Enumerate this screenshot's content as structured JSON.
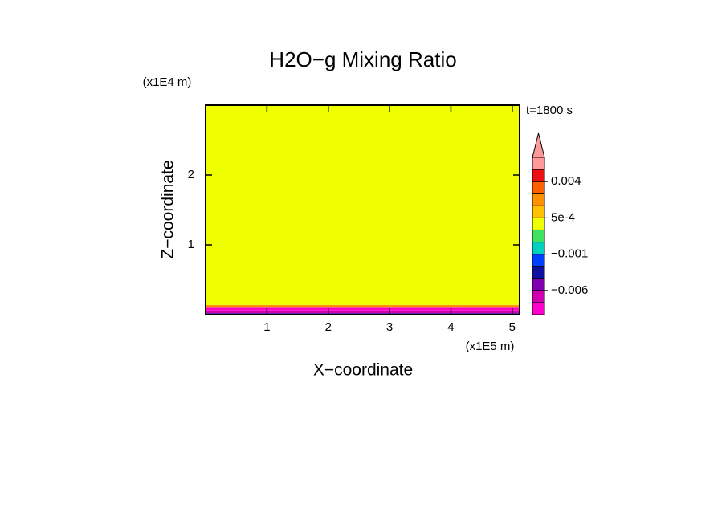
{
  "chart_data": {
    "type": "contour",
    "title": "H2O−g Mixing Ratio",
    "xlabel": "X−coordinate",
    "ylabel": "Z−coordinate",
    "xunit": "(x1E5 m)",
    "yunit": "(x1E4 m)",
    "time_label": "t=1800 s",
    "xlim": [
      0,
      5.12
    ],
    "ylim": [
      0,
      3
    ],
    "xticks": [
      1,
      2,
      3,
      4,
      5
    ],
    "yticks": [
      1,
      2
    ],
    "field": {
      "z_edges": [
        0,
        0.02,
        0.06,
        0.1,
        0.14,
        3
      ],
      "values": [
        -0.003,
        -0.007,
        -0.009,
        0.0015,
        0.0002
      ]
    },
    "colorbar": {
      "levels": [
        -0.01,
        -0.008,
        -0.006,
        -0.004,
        -0.002,
        -0.001,
        -0.0005,
        0,
        0.0005,
        0.001,
        0.002,
        0.004,
        0.006,
        0.008
      ],
      "colors": [
        "#ff00cc",
        "#d000b0",
        "#8000b0",
        "#1010a0",
        "#0040ff",
        "#00d0c0",
        "#40e060",
        "#f0ff00",
        "#ffc000",
        "#ff9000",
        "#ff6000",
        "#ee1010",
        "#ff9a9a"
      ],
      "extend_color": "#ff9a9a",
      "ticks": [
        {
          "value": 0.004,
          "label": "0.004"
        },
        {
          "value": 0.0005,
          "label": "5e-4"
        },
        {
          "value": -0.001,
          "label": "−0.001"
        },
        {
          "value": -0.006,
          "label": "−0.006"
        }
      ]
    }
  }
}
